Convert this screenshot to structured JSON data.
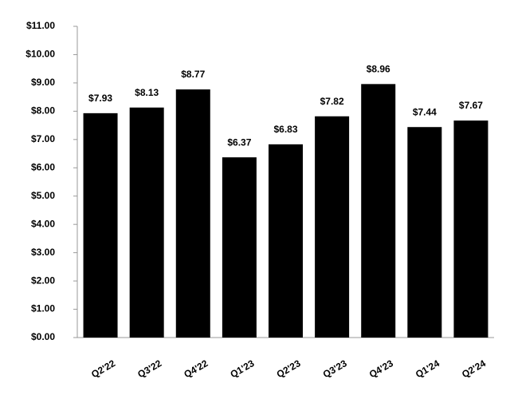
{
  "chart_data": {
    "type": "bar",
    "categories": [
      "Q2'22",
      "Q3'22",
      "Q4'22",
      "Q1'23",
      "Q2'23",
      "Q3'23",
      "Q4'23",
      "Q1'24",
      "Q2'24"
    ],
    "values": [
      7.93,
      8.13,
      8.77,
      6.37,
      6.83,
      7.82,
      8.96,
      7.44,
      7.67
    ],
    "value_labels": [
      "$7.93",
      "$8.13",
      "$8.77",
      "$6.37",
      "$6.83",
      "$7.82",
      "$8.96",
      "$7.44",
      "$7.67"
    ],
    "color": "#000000",
    "ylim": [
      0,
      11
    ],
    "yticks": [
      {
        "value": 0,
        "label": "$0.00"
      },
      {
        "value": 1,
        "label": "$1.00"
      },
      {
        "value": 2,
        "label": "$2.00"
      },
      {
        "value": 3,
        "label": "$3.00"
      },
      {
        "value": 4,
        "label": "$4.00"
      },
      {
        "value": 5,
        "label": "$5.00"
      },
      {
        "value": 6,
        "label": "$6.00"
      },
      {
        "value": 7,
        "label": "$7.00"
      },
      {
        "value": 8,
        "label": "$8.00"
      },
      {
        "value": 9,
        "label": "$9.00"
      },
      {
        "value": 10,
        "label": "$10.00"
      },
      {
        "value": 11,
        "label": "$11.00"
      }
    ],
    "grid": false
  }
}
